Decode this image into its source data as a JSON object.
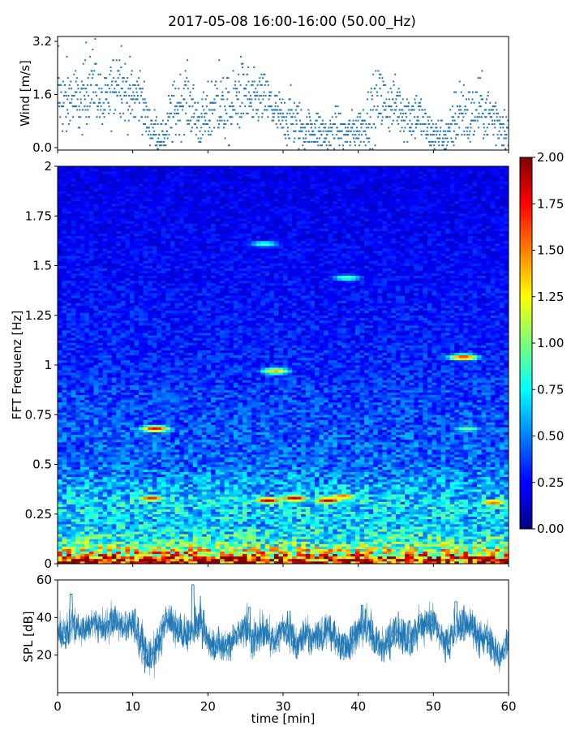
{
  "chart_data": [
    {
      "type": "scatter",
      "panel": "wind",
      "title": "2017-05-08 16:00-16:00 (50.00_Hz)",
      "ylabel": "Wind [m/s]",
      "xlim": [
        0,
        60
      ],
      "ylim": [
        0.0,
        3.2
      ],
      "yticks": [
        0.0,
        1.6,
        3.2
      ],
      "ytick_labels": [
        "0.0",
        "1.6",
        "3.2"
      ],
      "marker_color": "#1f77b4",
      "x": [
        0,
        1,
        2,
        3,
        4,
        5,
        6,
        7,
        8,
        9,
        10,
        11,
        12,
        13,
        14,
        15,
        16,
        17,
        18,
        19,
        20,
        21,
        22,
        23,
        24,
        25,
        26,
        27,
        28,
        29,
        30,
        31,
        32,
        33,
        34,
        35,
        36,
        37,
        38,
        39,
        40,
        41,
        42,
        43,
        44,
        45,
        46,
        47,
        48,
        49,
        50,
        51,
        52,
        53,
        54,
        55,
        56,
        57,
        58,
        59,
        60
      ],
      "y_mean": [
        1.6,
        1.4,
        1.5,
        1.3,
        1.8,
        2.0,
        1.2,
        1.6,
        2.2,
        1.7,
        1.5,
        1.7,
        0.8,
        0.6,
        0.4,
        0.9,
        1.3,
        1.6,
        1.2,
        0.8,
        1.0,
        1.5,
        1.2,
        1.1,
        1.6,
        1.7,
        1.3,
        1.6,
        1.4,
        1.1,
        0.9,
        1.0,
        0.8,
        0.6,
        0.7,
        0.6,
        0.4,
        0.8,
        0.5,
        0.6,
        0.7,
        0.9,
        1.2,
        1.5,
        1.3,
        1.4,
        1.2,
        1.0,
        1.1,
        0.7,
        0.5,
        0.5,
        0.4,
        1.0,
        1.2,
        0.9,
        1.3,
        1.1,
        1.0,
        0.8,
        0.6
      ],
      "y_spread": [
        0.5,
        0.6,
        0.6,
        0.5,
        0.5,
        0.5,
        0.4,
        0.5,
        0.5,
        0.5,
        0.5,
        0.5,
        0.3,
        0.3,
        0.2,
        0.5,
        0.5,
        0.5,
        0.5,
        0.4,
        0.5,
        0.5,
        0.5,
        0.5,
        0.6,
        0.5,
        0.5,
        0.4,
        0.4,
        0.4,
        0.4,
        0.4,
        0.4,
        0.3,
        0.3,
        0.3,
        0.3,
        0.3,
        0.3,
        0.3,
        0.3,
        0.4,
        0.5,
        0.5,
        0.4,
        0.4,
        0.5,
        0.4,
        0.4,
        0.3,
        0.3,
        0.3,
        0.3,
        0.5,
        0.5,
        0.5,
        0.5,
        0.4,
        0.5,
        0.4,
        0.3
      ],
      "y_max_points": [
        [
          0.1,
          3.0
        ],
        [
          3.8,
          3.1
        ],
        [
          5.0,
          3.2
        ],
        [
          8.5,
          3.0
        ],
        [
          21.5,
          2.6
        ],
        [
          24.5,
          2.5
        ],
        [
          43.0,
          2.2
        ],
        [
          53.5,
          2.0
        ]
      ]
    },
    {
      "type": "heatmap",
      "panel": "spectrogram",
      "ylabel": "FFT Frequenz [Hz]",
      "xlim": [
        0,
        60
      ],
      "ylim": [
        0,
        2
      ],
      "yticks": [
        0,
        0.25,
        0.5,
        0.75,
        1,
        1.25,
        1.5,
        1.75,
        2
      ],
      "ytick_labels": [
        "0",
        "0.25",
        "0.5",
        "0.75",
        "1",
        "1.25",
        "1.5",
        "1.75",
        "2"
      ],
      "colormap": "jet",
      "clim": [
        0.0,
        2.0
      ],
      "colorbar_ticks": [
        0.0,
        0.25,
        0.5,
        0.75,
        1.0,
        1.25,
        1.5,
        1.75,
        2.0
      ],
      "colorbar_labels": [
        "0.00",
        "0.25",
        "0.50",
        "0.75",
        "1.00",
        "1.25",
        "1.50",
        "1.75",
        "2.00"
      ],
      "typical_profile": {
        "freq_hz": [
          0.0,
          0.05,
          0.1,
          0.2,
          0.3,
          0.5,
          0.75,
          1.0,
          1.5,
          2.0
        ],
        "value": [
          1.9,
          1.3,
          0.9,
          0.65,
          0.7,
          0.45,
          0.4,
          0.32,
          0.25,
          0.2
        ]
      },
      "hot_spots": [
        {
          "t": 13.0,
          "f": 0.68,
          "value": 1.8
        },
        {
          "t": 12.5,
          "f": 0.33,
          "value": 1.7
        },
        {
          "t": 28.0,
          "f": 0.32,
          "value": 1.9
        },
        {
          "t": 31.5,
          "f": 0.33,
          "value": 1.9
        },
        {
          "t": 36.0,
          "f": 0.32,
          "value": 1.9
        },
        {
          "t": 38.0,
          "f": 0.34,
          "value": 1.6
        },
        {
          "t": 29.0,
          "f": 0.97,
          "value": 1.4
        },
        {
          "t": 27.5,
          "f": 1.61,
          "value": 0.9
        },
        {
          "t": 38.5,
          "f": 1.44,
          "value": 0.95
        },
        {
          "t": 54.0,
          "f": 1.04,
          "value": 1.7
        },
        {
          "t": 54.5,
          "f": 0.68,
          "value": 1.0
        },
        {
          "t": 58.0,
          "f": 0.31,
          "value": 1.6
        },
        {
          "t": 3.0,
          "f": 0.02,
          "value": 2.0
        },
        {
          "t": 19.0,
          "f": 0.02,
          "value": 2.0
        },
        {
          "t": 38.0,
          "f": 0.02,
          "value": 2.0
        },
        {
          "t": 55.0,
          "f": 0.03,
          "value": 2.0
        }
      ]
    },
    {
      "type": "line",
      "panel": "spl",
      "ylabel": "SPL [dB]",
      "xlabel": "time [min]",
      "xlim": [
        0,
        60
      ],
      "ylim": [
        0,
        60
      ],
      "xticks": [
        0,
        10,
        20,
        30,
        40,
        50,
        60
      ],
      "xtick_labels": [
        "0",
        "10",
        "20",
        "30",
        "40",
        "50",
        "60"
      ],
      "yticks": [
        20,
        40,
        60
      ],
      "ytick_labels": [
        "20",
        "40",
        "60"
      ],
      "line_color": "#1f77b4",
      "x": [
        0,
        1,
        2,
        3,
        4,
        5,
        6,
        7,
        8,
        9,
        10,
        11,
        12,
        13,
        14,
        15,
        16,
        17,
        18,
        19,
        20,
        21,
        22,
        23,
        24,
        25,
        26,
        27,
        28,
        29,
        30,
        31,
        32,
        33,
        34,
        35,
        36,
        37,
        38,
        39,
        40,
        41,
        42,
        43,
        44,
        45,
        46,
        47,
        48,
        49,
        50,
        51,
        52,
        53,
        54,
        55,
        56,
        57,
        58,
        59,
        60
      ],
      "y_mean": [
        32,
        30,
        36,
        33,
        35,
        37,
        34,
        38,
        36,
        35,
        37,
        28,
        18,
        22,
        33,
        38,
        34,
        30,
        32,
        40,
        26,
        24,
        26,
        25,
        30,
        35,
        28,
        30,
        32,
        26,
        35,
        30,
        24,
        32,
        28,
        30,
        34,
        28,
        25,
        26,
        32,
        36,
        30,
        24,
        28,
        32,
        30,
        28,
        34,
        36,
        38,
        30,
        26,
        35,
        34,
        36,
        28,
        30,
        22,
        20,
        28
      ],
      "y_spread": [
        5,
        6,
        6,
        5,
        5,
        5,
        5,
        6,
        5,
        5,
        5,
        7,
        6,
        6,
        7,
        6,
        6,
        6,
        6,
        7,
        5,
        5,
        5,
        5,
        5,
        6,
        6,
        6,
        6,
        5,
        6,
        6,
        5,
        6,
        6,
        6,
        6,
        5,
        5,
        5,
        6,
        6,
        6,
        6,
        6,
        6,
        6,
        6,
        6,
        6,
        6,
        6,
        6,
        6,
        6,
        6,
        6,
        6,
        6,
        5,
        5
      ],
      "y_peaks": [
        [
          1.8,
          52
        ],
        [
          18.0,
          57
        ],
        [
          25.5,
          45
        ],
        [
          40.5,
          46
        ],
        [
          53.0,
          48
        ]
      ]
    }
  ]
}
